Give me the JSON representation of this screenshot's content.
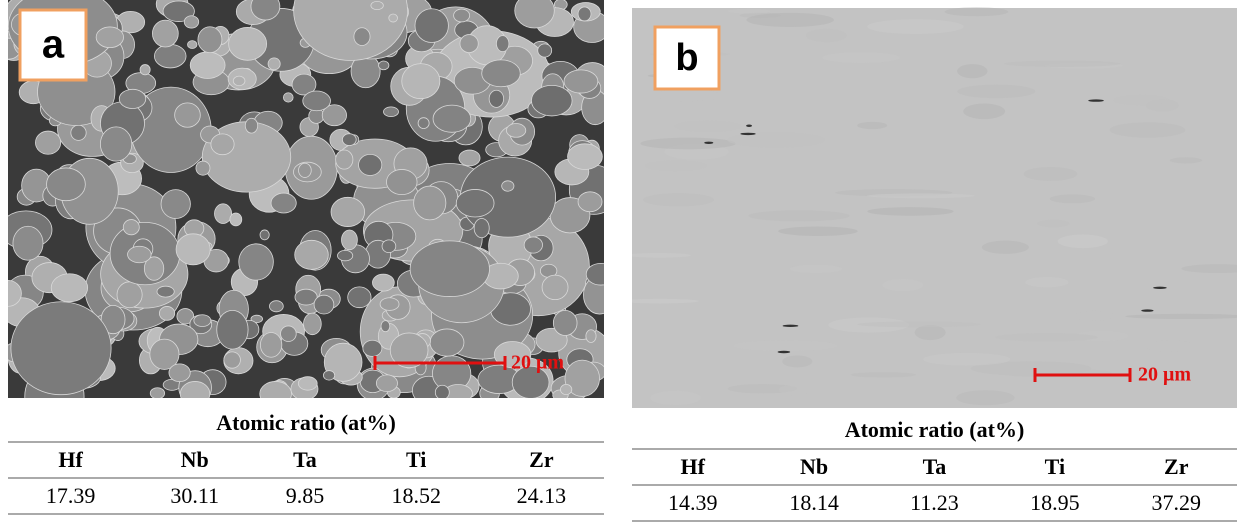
{
  "panels": [
    {
      "label": "a",
      "scale": "20 μm",
      "table": {
        "title": "Atomic ratio (at%)",
        "header": [
          "Hf",
          "Nb",
          "Ta",
          "Ti",
          "Zr"
        ],
        "rows": [
          [
            "17.39",
            "30.11",
            "9.85",
            "18.52",
            "24.13"
          ]
        ]
      }
    },
    {
      "label": "b",
      "scale": "20 μm",
      "table": {
        "title": "Atomic ratio (at%)",
        "header": [
          "Hf",
          "Nb",
          "Ta",
          "Ti",
          "Zr"
        ],
        "rows": [
          [
            "14.39",
            "18.14",
            "11.23",
            "18.95",
            "37.29"
          ]
        ]
      }
    }
  ]
}
